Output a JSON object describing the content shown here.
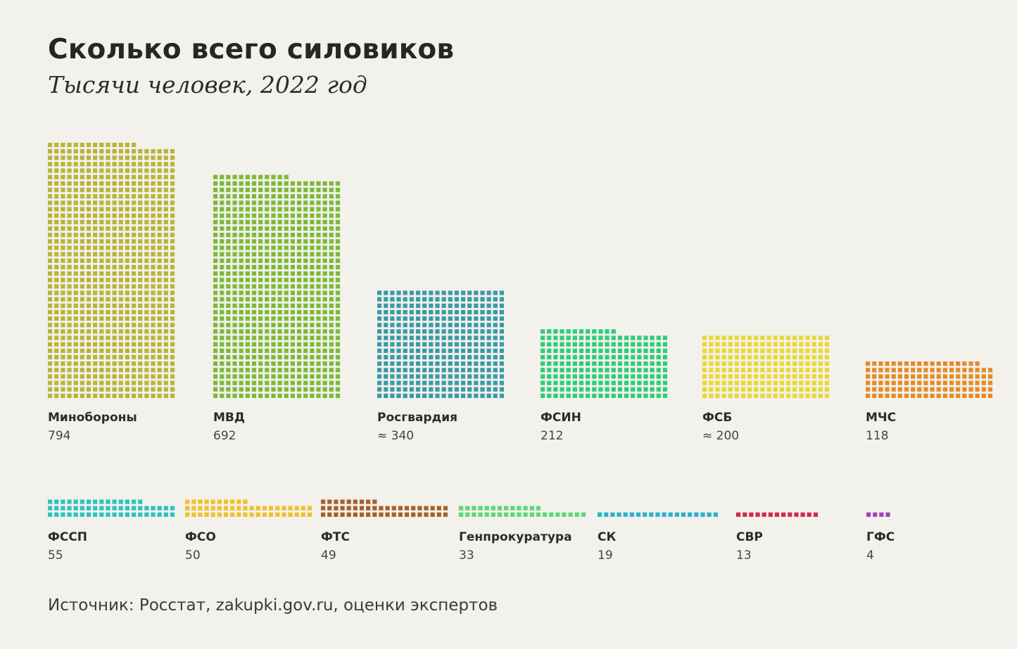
{
  "title": "Сколько всего силовиков",
  "subtitle": "Тысячи человек, 2022 год",
  "source": "Источник: Росстат, zakupki.gov.ru, оценки экспертов",
  "chart_data": {
    "type": "bar",
    "title": "Сколько всего силовиков",
    "subtitle": "Тысячи человек, 2022 год",
    "categories": [
      "Минобороны",
      "МВД",
      "Росгвардия",
      "ФСИН",
      "ФСБ",
      "МЧС",
      "ФССП",
      "ФСО",
      "ФТС",
      "Генпрокуратура",
      "СК",
      "СВР",
      "ГФС"
    ],
    "values": [
      794,
      692,
      340,
      212,
      200,
      118,
      55,
      50,
      49,
      33,
      19,
      13,
      4
    ],
    "value_labels": [
      "794",
      "692",
      "≈ 340",
      "212",
      "≈ 200",
      "118",
      "55",
      "50",
      "49",
      "33",
      "19",
      "13",
      "4"
    ],
    "colors": [
      "#b8b43a",
      "#7cb93a",
      "#3b9aa8",
      "#2fcc78",
      "#e8d832",
      "#e58a2a",
      "#2ec4bf",
      "#f0c22a",
      "#a8602c",
      "#5fd876",
      "#27b4cf",
      "#d02a50",
      "#a540bf"
    ]
  }
}
